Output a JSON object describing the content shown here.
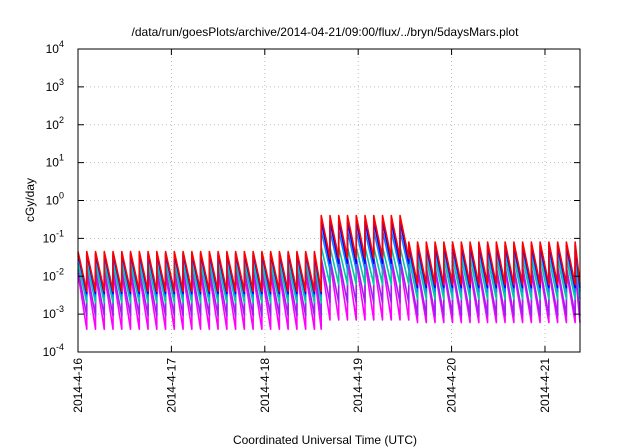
{
  "chart_data": {
    "type": "line",
    "title": "/data/run/goesPlots/archive/2014-04-21/09:00/flux/../bryn/5daysMars.plot",
    "xlabel": "Coordinated Universal Time (UTC)",
    "ylabel": "cGy/day",
    "y_scale": "log",
    "ylim": [
      0.0001,
      10000
    ],
    "yticks": [
      {
        "value": 0.0001,
        "mantissa": "10",
        "exp": "-4"
      },
      {
        "value": 0.001,
        "mantissa": "10",
        "exp": "-3"
      },
      {
        "value": 0.01,
        "mantissa": "10",
        "exp": "-2"
      },
      {
        "value": 0.1,
        "mantissa": "10",
        "exp": "-1"
      },
      {
        "value": 1,
        "mantissa": "10",
        "exp": "0"
      },
      {
        "value": 10,
        "mantissa": "10",
        "exp": "1"
      },
      {
        "value": 100,
        "mantissa": "10",
        "exp": "2"
      },
      {
        "value": 1000,
        "mantissa": "10",
        "exp": "3"
      },
      {
        "value": 10000,
        "mantissa": "10",
        "exp": "4"
      }
    ],
    "xlim": [
      "2014-04-16T00:00",
      "2014-04-21T09:00"
    ],
    "xticks": [
      {
        "value": "2014-04-16T00:00",
        "label": "2014-4-16"
      },
      {
        "value": "2014-04-17T00:00",
        "label": "2014-4-17"
      },
      {
        "value": "2014-04-18T00:00",
        "label": "2014-4-18"
      },
      {
        "value": "2014-04-19T00:00",
        "label": "2014-4-19"
      },
      {
        "value": "2014-04-20T00:00",
        "label": "2014-4-20"
      },
      {
        "value": "2014-04-21T00:00",
        "label": "2014-4-21"
      }
    ],
    "grid": true,
    "legend": "none",
    "sawtooth_period_hours": 2.25,
    "series": [
      {
        "color": "#ff0000",
        "segments": [
          {
            "start": "2014-04-16T00:00",
            "end": "2014-04-18T14:30",
            "peak": 0.045,
            "trough": 0.004
          },
          {
            "start": "2014-04-18T14:30",
            "end": "2014-04-19T13:00",
            "peak": 0.4,
            "trough": 0.03
          },
          {
            "start": "2014-04-19T13:00",
            "end": "2014-04-21T09:00",
            "peak": 0.08,
            "trough": 0.006
          }
        ]
      },
      {
        "color": "#0000ff",
        "segments": [
          {
            "start": "2014-04-16T00:00",
            "end": "2014-04-18T14:30",
            "peak": 0.04,
            "trough": 0.0035
          },
          {
            "start": "2014-04-18T14:30",
            "end": "2014-04-19T13:00",
            "peak": 0.28,
            "trough": 0.022
          },
          {
            "start": "2014-04-19T13:00",
            "end": "2014-04-21T09:00",
            "peak": 0.065,
            "trough": 0.005
          }
        ]
      },
      {
        "color": "#0a84ff",
        "segments": [
          {
            "start": "2014-04-16T00:00",
            "end": "2014-04-18T14:30",
            "peak": 0.035,
            "trough": 0.003
          },
          {
            "start": "2014-04-18T14:30",
            "end": "2014-04-19T13:00",
            "peak": 0.16,
            "trough": 0.015
          },
          {
            "start": "2014-04-19T13:00",
            "end": "2014-04-21T09:00",
            "peak": 0.05,
            "trough": 0.004
          }
        ]
      },
      {
        "color": "#00c8a0",
        "segments": [
          {
            "start": "2014-04-16T00:00",
            "end": "2014-04-18T14:30",
            "peak": 0.022,
            "trough": 0.002
          },
          {
            "start": "2014-04-18T14:30",
            "end": "2014-04-19T13:00",
            "peak": 0.06,
            "trough": 0.006
          },
          {
            "start": "2014-04-19T13:00",
            "end": "2014-04-21T09:00",
            "peak": 0.03,
            "trough": 0.0025
          }
        ]
      },
      {
        "color": "#a020f0",
        "segments": [
          {
            "start": "2014-04-16T00:00",
            "end": "2014-04-18T14:30",
            "peak": 0.015,
            "trough": 0.0009
          },
          {
            "start": "2014-04-18T14:30",
            "end": "2014-04-19T13:00",
            "peak": 0.03,
            "trough": 0.002
          },
          {
            "start": "2014-04-19T13:00",
            "end": "2014-04-21T09:00",
            "peak": 0.018,
            "trough": 0.0009
          }
        ]
      },
      {
        "color": "#ff00ff",
        "segments": [
          {
            "start": "2014-04-16T00:00",
            "end": "2014-04-18T14:30",
            "peak": 0.012,
            "trough": 0.0004
          },
          {
            "start": "2014-04-18T14:30",
            "end": "2014-04-19T13:00",
            "peak": 0.025,
            "trough": 0.0007
          },
          {
            "start": "2014-04-19T13:00",
            "end": "2014-04-21T09:00",
            "peak": 0.014,
            "trough": 0.0006
          }
        ]
      }
    ]
  }
}
